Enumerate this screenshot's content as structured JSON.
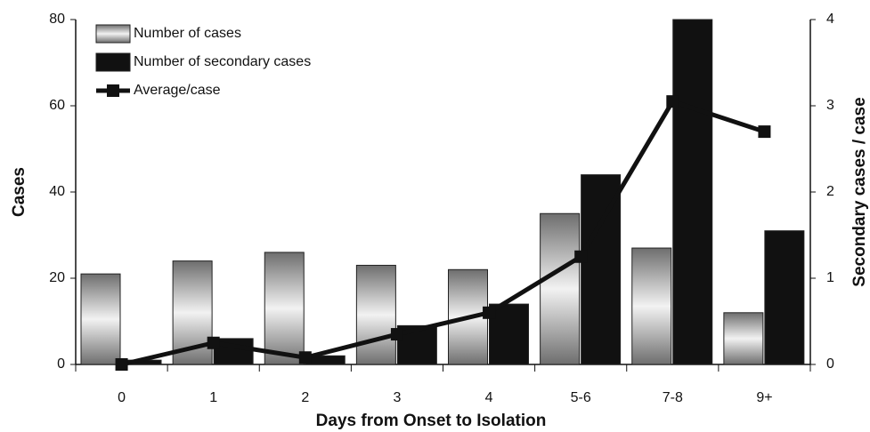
{
  "chart_data": {
    "type": "bar",
    "x_label": "Days from Onset to Isolation",
    "y_label": "Cases",
    "y2_label": "Secondary cases / case",
    "categories": [
      "0",
      "1",
      "2",
      "3",
      "4",
      "5-6",
      "7-8",
      "9+"
    ],
    "series": [
      {
        "name": "Number of cases",
        "color": "#8c8c8c",
        "type": "bar",
        "values": [
          21,
          24,
          26,
          23,
          22,
          35,
          27,
          12
        ]
      },
      {
        "name": "Number of secondary cases",
        "color": "#111111",
        "type": "bar",
        "values": [
          1,
          6,
          2,
          9,
          14,
          44,
          80,
          31
        ]
      },
      {
        "name": "Average/case",
        "color": "#111111",
        "type": "line",
        "axis": "y2",
        "values": [
          0,
          0.25,
          0.08,
          0.35,
          0.6,
          1.25,
          3.05,
          2.7
        ]
      }
    ],
    "ylim": [
      0,
      80
    ],
    "yticks": [
      0,
      20,
      40,
      60,
      80
    ],
    "y2lim": [
      0,
      4
    ],
    "y2ticks": [
      0,
      1,
      2,
      3,
      4
    ],
    "legend": "top-left"
  }
}
